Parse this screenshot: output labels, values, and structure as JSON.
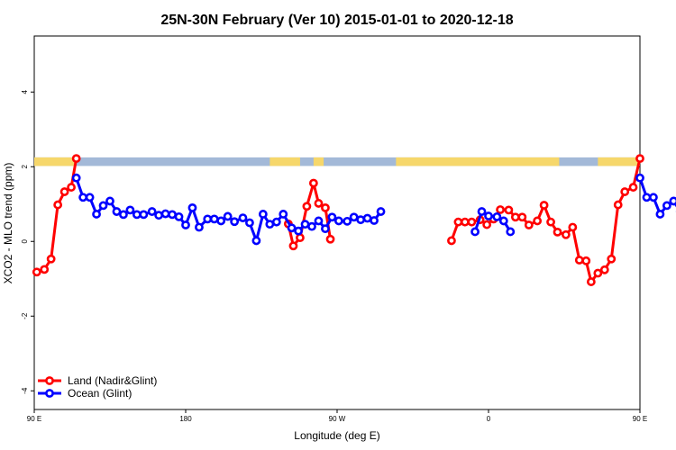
{
  "chart_data": {
    "type": "line",
    "title": "25N-30N February (Ver 10)   2015-01-01 to 2020-12-18",
    "xlabel": "Longitude (deg E)",
    "ylabel": "XCO2 - MLO trend (ppm)",
    "xlim": [
      90,
      450
    ],
    "ylim": [
      -4.5,
      5.5
    ],
    "x_ticks": [
      {
        "value": 90,
        "label": "90 E"
      },
      {
        "value": 180,
        "label": "180"
      },
      {
        "value": 270,
        "label": "90 W"
      },
      {
        "value": 360,
        "label": "0"
      },
      {
        "value": 450,
        "label": "90 E"
      },
      {
        "value": 540,
        "label": "180"
      }
    ],
    "y_ticks": [
      {
        "value": -4,
        "label": "-4"
      },
      {
        "value": -2,
        "label": "-2"
      },
      {
        "value": 0,
        "label": "0"
      },
      {
        "value": 2,
        "label": "2"
      },
      {
        "value": 4,
        "label": "4"
      }
    ],
    "legend_position": "bottom-left",
    "surface_band": {
      "y_range": [
        2.02,
        2.25
      ],
      "land_color": "#f6d76b",
      "ocean_color": "#a3b9d8",
      "land_ranges": [
        [
          90,
          114
        ],
        [
          230,
          248
        ],
        [
          256,
          262
        ],
        [
          305,
          402
        ],
        [
          425,
          481
        ]
      ]
    },
    "series": [
      {
        "name": "Land (Nadir&Glint)",
        "color": "#ff0000",
        "segments": [
          [
            [
              91.5,
              -0.82
            ],
            [
              96,
              -0.75
            ],
            [
              100,
              -0.47
            ],
            [
              104,
              0.98
            ],
            [
              108,
              1.33
            ],
            [
              112,
              1.45
            ],
            [
              115,
              2.22
            ]
          ],
          [
            [
              241,
              0.47
            ],
            [
              244,
              -0.12
            ],
            [
              248,
              0.1
            ],
            [
              252,
              0.94
            ],
            [
              256,
              1.56
            ],
            [
              259,
              1.02
            ],
            [
              263,
              0.9
            ],
            [
              266,
              0.06
            ]
          ],
          [
            [
              338,
              0.02
            ],
            [
              342,
              0.52
            ],
            [
              346,
              0.52
            ],
            [
              350,
              0.52
            ],
            [
              355,
              0.58
            ],
            [
              359,
              0.45
            ],
            [
              363,
              0.6
            ],
            [
              367,
              0.85
            ],
            [
              372,
              0.84
            ],
            [
              376,
              0.65
            ],
            [
              380,
              0.65
            ],
            [
              384,
              0.44
            ],
            [
              389,
              0.55
            ],
            [
              393,
              0.97
            ],
            [
              397,
              0.52
            ],
            [
              401,
              0.25
            ],
            [
              406,
              0.18
            ],
            [
              410,
              0.38
            ],
            [
              414,
              -0.5
            ],
            [
              418,
              -0.52
            ],
            [
              421,
              -1.08
            ],
            [
              425,
              -0.85
            ],
            [
              429,
              -0.76
            ],
            [
              433,
              -0.47
            ],
            [
              437,
              0.98
            ],
            [
              441,
              1.33
            ],
            [
              446,
              1.45
            ],
            [
              450,
              2.22
            ]
          ]
        ]
      },
      {
        "name": "Ocean (Glint)",
        "color": "#0000ff",
        "segments": [
          [
            [
              115,
              1.7
            ],
            [
              119,
              1.18
            ],
            [
              123,
              1.18
            ],
            [
              127,
              0.73
            ],
            [
              131,
              0.96
            ],
            [
              135,
              1.08
            ],
            [
              139,
              0.8
            ],
            [
              143,
              0.72
            ],
            [
              147,
              0.84
            ],
            [
              151,
              0.72
            ],
            [
              155,
              0.72
            ],
            [
              160,
              0.8
            ],
            [
              164,
              0.7
            ],
            [
              168,
              0.74
            ],
            [
              172,
              0.72
            ],
            [
              176,
              0.66
            ],
            [
              180,
              0.44
            ],
            [
              184,
              0.9
            ],
            [
              188,
              0.38
            ],
            [
              193,
              0.6
            ],
            [
              197,
              0.6
            ],
            [
              201,
              0.55
            ],
            [
              205,
              0.67
            ],
            [
              209,
              0.53
            ],
            [
              214,
              0.63
            ],
            [
              218,
              0.5
            ],
            [
              222,
              0.02
            ],
            [
              226,
              0.73
            ],
            [
              230,
              0.46
            ],
            [
              234,
              0.52
            ],
            [
              238,
              0.73
            ],
            [
              243,
              0.36
            ],
            [
              247,
              0.28
            ],
            [
              251,
              0.46
            ],
            [
              255,
              0.4
            ],
            [
              259,
              0.55
            ],
            [
              263,
              0.34
            ],
            [
              267,
              0.65
            ],
            [
              271,
              0.55
            ],
            [
              276,
              0.54
            ],
            [
              280,
              0.65
            ],
            [
              284,
              0.58
            ],
            [
              288,
              0.62
            ],
            [
              292,
              0.56
            ],
            [
              296,
              0.8
            ]
          ],
          [
            [
              352,
              0.26
            ],
            [
              356,
              0.8
            ],
            [
              360,
              0.68
            ],
            [
              365,
              0.66
            ],
            [
              369,
              0.55
            ],
            [
              373,
              0.26
            ]
          ],
          [
            [
              450,
              1.7
            ],
            [
              454,
              1.18
            ],
            [
              458,
              1.18
            ],
            [
              462,
              0.73
            ],
            [
              466,
              0.96
            ],
            [
              470,
              1.08
            ],
            [
              474,
              0.8
            ],
            [
              478,
              0.72
            ],
            [
              482,
              0.84
            ],
            [
              486,
              0.72
            ],
            [
              490,
              0.72
            ],
            [
              494,
              0.8
            ]
          ]
        ]
      }
    ]
  }
}
